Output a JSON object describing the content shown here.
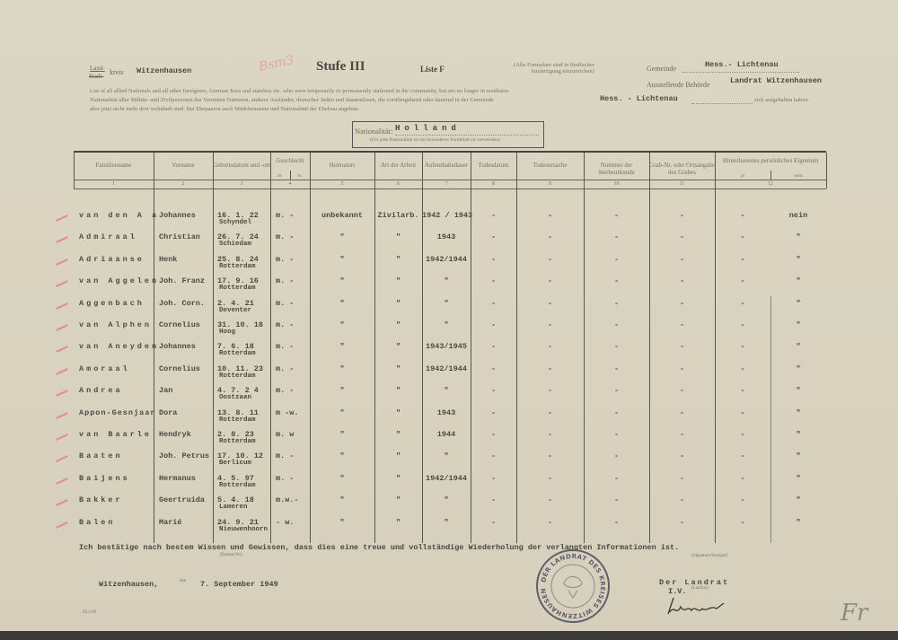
{
  "header": {
    "kreis_prefix_top": "Land-",
    "kreis_prefix_struck": "Stadt-",
    "kreis_label": "kreis",
    "kreis_value": "Witzenhausen",
    "pencil_note": "Bsm3",
    "stufe": "Stufe III",
    "liste": "Liste F",
    "formular_note_1": "(Alle Formulare sind in fünffacher",
    "formular_note_2": "Ausfertigung einzureichen)",
    "gemeinde_label": "Gemeinde",
    "gemeinde_value": "Hess.- Lichtenau",
    "behoerde_label": "Ausstellende Behörde",
    "behoerde_value": "Landrat Witzenhausen",
    "instruction_1": "List of all allied Nationals and all other foreigners, German Jews and stateless etc. who were temporarily or permanently stationed in the community, but are no longer in residence.",
    "instruction_2": "Nationalität aller Militär- und Zivilpersonen der Vereinten Nationen, anderer Ausländer, deutscher Juden und Staatenlosen, die vorübergehend oder dauernd in der Gemeinde",
    "instruction_3": "aber jetzt nicht mehr dort wohnhaft sind. Bei Ehepaaren auch Mädchenname und Nationalität der Ehefrau angeben.",
    "ort_value": "Hess. - Lichtenau",
    "ort_suffix": "sich aufgehalten haben.",
    "nationalitaet_label": "Nationalität:",
    "nationalitaet_value": "Holland",
    "nationalitaet_note": "(Für jede Nationalität ist ein besonderes Formblatt zu verwenden)"
  },
  "columns": [
    {
      "label": "Familienname",
      "num": "1"
    },
    {
      "label": "Vorname",
      "num": "2"
    },
    {
      "label": "Geburtsdatum und -ort",
      "num": "3"
    },
    {
      "label": "Geschlecht",
      "sub": [
        "m.",
        "w."
      ],
      "num": "4"
    },
    {
      "label": "Heimatort",
      "num": "5"
    },
    {
      "label": "Art der Arbeit",
      "num": "6"
    },
    {
      "label": "Aufenthaltsdauer",
      "num": "7"
    },
    {
      "label": "Todesdatum",
      "num": "8"
    },
    {
      "label": "Todesursache",
      "num": "9"
    },
    {
      "label": "Nummer der Sterbeurkunde",
      "num": "10"
    },
    {
      "label": "Grab-Nr. oder Ortsangabe des Grabes",
      "num": "11"
    },
    {
      "label": "Hinterlassenes persönliches Eigentum",
      "sub": [
        "ja",
        "nein"
      ],
      "num": "12"
    }
  ],
  "rows": [
    {
      "surname": "van den A a",
      "first": "Johannes",
      "birth_date": "16. 1. 22",
      "birth_place": "Schyndel",
      "sex": "m. -",
      "home": "unbekannt",
      "work": "Zivilarb.",
      "stay": "1942 / 1943",
      "death": "-",
      "cause": "-",
      "cert": "-",
      "grave": "-",
      "property": "nein"
    },
    {
      "surname": "Admiraal",
      "first": "Christian",
      "birth_date": "26. 7. 24",
      "birth_place": "Schiedam",
      "sex": "m. -",
      "home": "\"",
      "work": "\"",
      "stay": "1943",
      "death": "-",
      "cause": "-",
      "cert": "-",
      "grave": "-",
      "property": "\""
    },
    {
      "surname": "Adriaanse",
      "first": "Henk",
      "birth_date": "25. 8. 24",
      "birth_place": "Rotterdam",
      "sex": "m. -",
      "home": "\"",
      "work": "\"",
      "stay": "1942/1944",
      "death": "-",
      "cause": "-",
      "cert": "-",
      "grave": "-",
      "property": "\""
    },
    {
      "surname": "van Aggelen",
      "first": "Joh. Franz",
      "birth_date": "17. 9. 16",
      "birth_place": "Rotterdam",
      "sex": "m. -",
      "home": "\"",
      "work": "\"",
      "stay": "\"",
      "death": "-",
      "cause": "-",
      "cert": "-",
      "grave": "-",
      "property": "\""
    },
    {
      "surname": "Aggenbach",
      "first": "Joh. Corn.",
      "birth_date": "2. 4. 21",
      "birth_place": "Deventer",
      "sex": "m. -",
      "home": "\"",
      "work": "\"",
      "stay": "\"",
      "death": "-",
      "cause": "-",
      "cert": "-",
      "grave": "-",
      "property": "\""
    },
    {
      "surname": "van Alphen",
      "first": "Cornelius",
      "birth_date": "31. 10. 18",
      "birth_place": "Hoog",
      "sex": "m. -",
      "home": "\"",
      "work": "\"",
      "stay": "\"",
      "death": "-",
      "cause": "-",
      "cert": "-",
      "grave": "-",
      "property": "\""
    },
    {
      "surname": "van Aneyden",
      "first": "Johannes",
      "birth_date": "7. 6. 18",
      "birth_place": "Rotterdam",
      "sex": "m. -",
      "home": "\"",
      "work": "\"",
      "stay": "1943/1945",
      "death": "-",
      "cause": "-",
      "cert": "-",
      "grave": "-",
      "property": "\""
    },
    {
      "surname": "Amoraal",
      "first": "Cornelius",
      "birth_date": "10. 11. 23",
      "birth_place": "Rotterdam",
      "sex": "m. -",
      "home": "\"",
      "work": "\"",
      "stay": "1942/1944",
      "death": "-",
      "cause": "-",
      "cert": "-",
      "grave": "-",
      "property": "\""
    },
    {
      "surname": "Andrea",
      "first": "Jan",
      "birth_date": "4. 7. 2 4",
      "birth_place": "Oostzaan",
      "sex": "m. -",
      "home": "\"",
      "work": "\"",
      "stay": "\"",
      "death": "-",
      "cause": "-",
      "cert": "-",
      "grave": "-",
      "property": "\""
    },
    {
      "surname": "Appon-Gesnjaar",
      "first": "Dora",
      "birth_date": "13. 8. 11",
      "birth_place": "Rotterdam",
      "sex": "m -w.",
      "home": "\"",
      "work": "\"",
      "stay": "1943",
      "death": "-",
      "cause": "-",
      "cert": "-",
      "grave": "-",
      "property": "\""
    },
    {
      "surname": "van Baarle",
      "first": "Hendryk",
      "birth_date": "2. 8. 23",
      "birth_place": "Rotterdam",
      "sex": "m. w",
      "home": "\"",
      "work": "\"",
      "stay": "1944",
      "death": "-",
      "cause": "-",
      "cert": "-",
      "grave": "-",
      "property": "\""
    },
    {
      "surname": "Baaten",
      "first": "Joh. Petrus",
      "birth_date": "17. 10. 12",
      "birth_place": "Berlicum",
      "sex": "m. -",
      "home": "\"",
      "work": "\"",
      "stay": "\"",
      "death": "-",
      "cause": "-",
      "cert": "-",
      "grave": "-",
      "property": "\""
    },
    {
      "surname": "Baijens",
      "first": "Hermanus",
      "birth_date": "4. 5. 97",
      "birth_place": "Rotterdam",
      "sex": "m. -",
      "home": "\"",
      "work": "\"",
      "stay": "1942/1944",
      "death": "-",
      "cause": "-",
      "cert": "-",
      "grave": "-",
      "property": "\""
    },
    {
      "surname": "Bakker",
      "first": "Geertruida",
      "birth_date": "5. 4. 18",
      "birth_place": "Lameren",
      "sex": "m.w.-",
      "home": "\"",
      "work": "\"",
      "stay": "\"",
      "death": "-",
      "cause": "-",
      "cert": "-",
      "grave": "-",
      "property": "\""
    },
    {
      "surname": "Balen",
      "first": "Marié",
      "birth_date": "24. 9. 21",
      "birth_place": "Nieuwenhoorn",
      "sex": "- w.",
      "home": "\"",
      "work": "\"",
      "stay": "\"",
      "death": "-",
      "cause": "-",
      "cert": "-",
      "grave": "-",
      "property": "\""
    }
  ],
  "footer": {
    "declaration": "Ich bestätige nach bestem Wissen und Gewissen, dass dies eine treue und vollständige Wiederholung der verlangten Informationen ist.",
    "place_hint": "(Datum/Ort)",
    "signature_hint": "(Signature/Stempel)",
    "place": "Witzenhausen,",
    "den": "den",
    "date": "7. September 1949",
    "signer_title": "Der Landrat",
    "signer_sub": "I.V.",
    "signer_sub_hint": "(Landrat)",
    "stamp_text": "DER LANDRAT DES KREISES WITZENHAUSEN",
    "form_code": "III 2/49",
    "pencil_initial": "Fr"
  }
}
